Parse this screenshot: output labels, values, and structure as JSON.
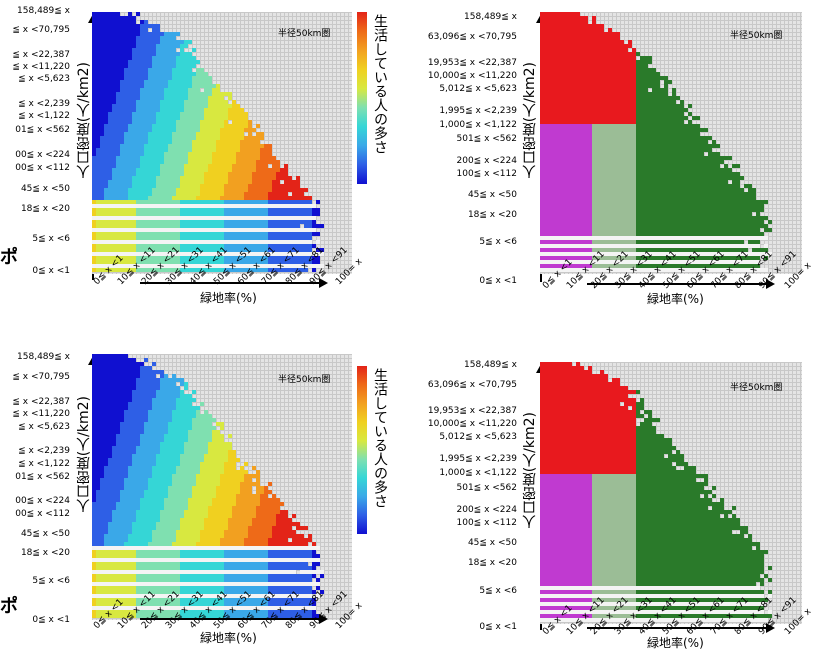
{
  "chart_data": [
    {
      "type": "heatmap",
      "panel": "top-left",
      "color_scheme": "density",
      "radius_label": "半径50km圏",
      "ylabel": "人口密度(人/km2)",
      "xlabel": "緑地率(%)",
      "legend_title": "生活している人の多さ",
      "y_ticks": [
        "158,489≦ x",
        "≦ x <70,795",
        "≦ x <22,387",
        "≦ x <11,220",
        "≦ x <5,623",
        "≦ x <2,239",
        "≦ x <1,122",
        "01≦ x <562",
        "00≦ x <224",
        "00≦ x <112",
        "45≦ x <50",
        "18≦ x <20",
        "5≦ x <6",
        "0≦ x <1"
      ],
      "x_ticks": [
        "0≦ x <1",
        "10≦ x <11",
        "20≦ x <21",
        "30≦ x <31",
        "40≦ x <41",
        "50≦ x <51",
        "60≦ x <61",
        "70≦ x <71",
        "80≦ x <81",
        "90≦ x <91",
        "100= x"
      ]
    },
    {
      "type": "heatmap",
      "panel": "top-right",
      "color_scheme": "cluster",
      "radius_label": "半径50km圏",
      "ylabel": "人口密度(人/km2)",
      "xlabel": "緑地率(%)",
      "y_ticks": [
        "158,489≦ x",
        "63,096≦ x <70,795",
        "19,953≦ x <22,387",
        "10,000≦ x <11,220",
        "5,012≦ x <5,623",
        "1,995≦ x <2,239",
        "1,000≦ x <1,122",
        "501≦ x <562",
        "200≦ x <224",
        "100≦ x <112",
        "45≦ x <50",
        "18≦ x <20",
        "5≦ x <6",
        "0≦ x <1"
      ],
      "x_ticks": [
        "0≦ x <1",
        "10≦ x <11",
        "20≦ x <21",
        "30≦ x <31",
        "40≦ x <41",
        "50≦ x <51",
        "60≦ x <61",
        "70≦ x <71",
        "80≦ x <81",
        "90≦ x <91",
        "100= x"
      ]
    },
    {
      "type": "heatmap",
      "panel": "bottom-left",
      "color_scheme": "density",
      "radius_label": "半径50km圏",
      "ylabel": "人口密度(人/km2)",
      "xlabel": "緑地率(%)",
      "legend_title": "生活している人の多さ",
      "y_ticks": [
        "158,489≦ x",
        "≦ x <70,795",
        "≦ x <22,387",
        "≦ x <11,220",
        "≦ x <5,623",
        "≦ x <2,239",
        "≦ x <1,122",
        "01≦ x <562",
        "00≦ x <224",
        "00≦ x <112",
        "45≦ x <50",
        "18≦ x <20",
        "5≦ x <6",
        "0≦ x <1"
      ],
      "x_ticks": [
        "0≦ x <1",
        "10≦ x <11",
        "20≦ x <21",
        "30≦ x <31",
        "40≦ x <41",
        "50≦ x <51",
        "60≦ x <61",
        "70≦ x <71",
        "80≦ x <81",
        "90≦ x <91",
        "100= x"
      ]
    },
    {
      "type": "heatmap",
      "panel": "bottom-right",
      "color_scheme": "cluster",
      "radius_label": "半径50km圏",
      "ylabel": "人口密度(人/km2)",
      "xlabel": "緑地率(%)",
      "y_ticks": [
        "158,489≦ x",
        "63,096≦ x <70,795",
        "19,953≦ x <22,387",
        "10,000≦ x <11,220",
        "5,012≦ x <5,623",
        "1,995≦ x <2,239",
        "1,000≦ x <1,122",
        "501≦ x <562",
        "200≦ x <224",
        "100≦ x <112",
        "45≦ x <50",
        "18≦ x <20",
        "5≦ x <6",
        "0≦ x <1"
      ],
      "x_ticks": [
        "0≦ x <1",
        "10≦ x <11",
        "20≦ x <21",
        "30≦ x <31",
        "40≦ x <41",
        "50≦ x <51",
        "60≦ x <61",
        "70≦ x <71",
        "80≦ x <81",
        "90≦ x <91",
        "100= x"
      ]
    }
  ],
  "colors": {
    "density_scale": [
      "#1010d0",
      "#2e5fe6",
      "#3aa8e8",
      "#35d6d6",
      "#7fe0b0",
      "#d8e840",
      "#f0d020",
      "#f2a020",
      "#ee6a18",
      "#e32418"
    ],
    "cluster_red": "#e8191e",
    "cluster_magenta": "#c03ad0",
    "cluster_lightgreen": "#9bbd96",
    "cluster_darkgreen": "#2a7a2a",
    "grid_bg": "#e4e4e4",
    "grid_line": "#c8c8c8"
  },
  "edge_mark": "ポ"
}
